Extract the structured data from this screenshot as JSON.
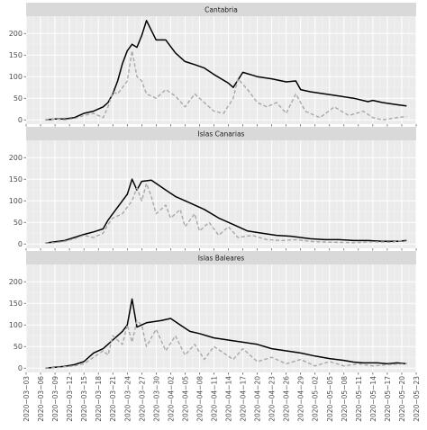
{
  "chart_data": [
    {
      "type": "line",
      "title": "Cantabria",
      "ylim": [
        -10,
        240
      ],
      "yticks": [
        0,
        50,
        100,
        150,
        200
      ],
      "xlim": [
        "2020-03-03",
        "2020-05-23"
      ],
      "grid": true,
      "series": [
        {
          "style": "solid",
          "x": [
            "2020-03-07",
            "2020-03-09",
            "2020-03-11",
            "2020-03-13",
            "2020-03-15",
            "2020-03-17",
            "2020-03-19",
            "2020-03-20",
            "2020-03-21",
            "2020-03-22",
            "2020-03-23",
            "2020-03-24",
            "2020-03-25",
            "2020-03-26",
            "2020-03-27",
            "2020-03-28",
            "2020-03-30",
            "2020-04-01",
            "2020-04-03",
            "2020-04-05",
            "2020-04-07",
            "2020-04-09",
            "2020-04-11",
            "2020-04-14",
            "2020-04-15",
            "2020-04-17",
            "2020-04-20",
            "2020-04-23",
            "2020-04-26",
            "2020-04-28",
            "2020-04-29",
            "2020-05-01",
            "2020-05-04",
            "2020-05-07",
            "2020-05-10",
            "2020-05-13",
            "2020-05-14",
            "2020-05-16",
            "2020-05-19",
            "2020-05-21"
          ],
          "y": [
            0,
            2,
            2,
            5,
            15,
            20,
            30,
            40,
            60,
            90,
            130,
            160,
            175,
            168,
            195,
            230,
            185,
            185,
            155,
            135,
            128,
            120,
            105,
            85,
            75,
            110,
            100,
            95,
            88,
            90,
            70,
            65,
            60,
            55,
            50,
            42,
            45,
            40,
            35,
            32
          ]
        },
        {
          "style": "dashed",
          "color": "#a8a8a8",
          "x": [
            "2020-03-07",
            "2020-03-09",
            "2020-03-11",
            "2020-03-13",
            "2020-03-15",
            "2020-03-17",
            "2020-03-19",
            "2020-03-20",
            "2020-03-21",
            "2020-03-22",
            "2020-03-24",
            "2020-03-25",
            "2020-03-26",
            "2020-03-27",
            "2020-03-28",
            "2020-03-30",
            "2020-04-01",
            "2020-04-03",
            "2020-04-05",
            "2020-04-07",
            "2020-04-09",
            "2020-04-11",
            "2020-04-13",
            "2020-04-15",
            "2020-04-16",
            "2020-04-18",
            "2020-04-20",
            "2020-04-22",
            "2020-04-24",
            "2020-04-26",
            "2020-04-28",
            "2020-04-30",
            "2020-05-03",
            "2020-05-06",
            "2020-05-09",
            "2020-05-12",
            "2020-05-14",
            "2020-05-16",
            "2020-05-19",
            "2020-05-21"
          ],
          "y": [
            0,
            2,
            0,
            3,
            10,
            15,
            5,
            30,
            65,
            60,
            90,
            160,
            100,
            90,
            60,
            50,
            70,
            55,
            30,
            60,
            40,
            20,
            15,
            50,
            95,
            70,
            40,
            30,
            40,
            15,
            60,
            20,
            5,
            30,
            10,
            20,
            5,
            0,
            5,
            8
          ]
        }
      ]
    },
    {
      "type": "line",
      "title": "Islas Canarias",
      "ylim": [
        -10,
        240
      ],
      "yticks": [
        0,
        50,
        100,
        150,
        200
      ],
      "xlim": [
        "2020-03-03",
        "2020-05-23"
      ],
      "grid": true,
      "series": [
        {
          "style": "solid",
          "x": [
            "2020-03-07",
            "2020-03-09",
            "2020-03-11",
            "2020-03-13",
            "2020-03-15",
            "2020-03-17",
            "2020-03-19",
            "2020-03-20",
            "2020-03-21",
            "2020-03-23",
            "2020-03-24",
            "2020-03-25",
            "2020-03-26",
            "2020-03-27",
            "2020-03-29",
            "2020-04-01",
            "2020-04-03",
            "2020-04-06",
            "2020-04-09",
            "2020-04-12",
            "2020-04-15",
            "2020-04-18",
            "2020-04-21",
            "2020-04-24",
            "2020-04-27",
            "2020-05-01",
            "2020-05-04",
            "2020-05-07",
            "2020-05-10",
            "2020-05-13",
            "2020-05-16",
            "2020-05-19",
            "2020-05-21"
          ],
          "y": [
            2,
            5,
            8,
            15,
            22,
            28,
            35,
            55,
            70,
            100,
            115,
            150,
            125,
            145,
            148,
            125,
            110,
            95,
            80,
            60,
            45,
            30,
            25,
            20,
            18,
            12,
            10,
            10,
            8,
            8,
            6,
            6,
            8
          ]
        },
        {
          "style": "dashed",
          "color": "#a8a8a8",
          "x": [
            "2020-03-07",
            "2020-03-09",
            "2020-03-11",
            "2020-03-13",
            "2020-03-15",
            "2020-03-17",
            "2020-03-19",
            "2020-03-20",
            "2020-03-21",
            "2020-03-23",
            "2020-03-25",
            "2020-03-26",
            "2020-03-27",
            "2020-03-28",
            "2020-03-29",
            "2020-03-30",
            "2020-04-01",
            "2020-04-02",
            "2020-04-04",
            "2020-04-05",
            "2020-04-07",
            "2020-04-08",
            "2020-04-10",
            "2020-04-12",
            "2020-04-14",
            "2020-04-16",
            "2020-04-19",
            "2020-04-22",
            "2020-04-25",
            "2020-04-28",
            "2020-05-02",
            "2020-05-06",
            "2020-05-10",
            "2020-05-14",
            "2020-05-18",
            "2020-05-21"
          ],
          "y": [
            2,
            3,
            6,
            12,
            20,
            15,
            25,
            45,
            60,
            70,
            100,
            130,
            100,
            140,
            110,
            70,
            90,
            60,
            80,
            40,
            70,
            30,
            50,
            20,
            40,
            15,
            20,
            10,
            8,
            10,
            5,
            4,
            3,
            5,
            4,
            10
          ]
        }
      ]
    },
    {
      "type": "line",
      "title": "Islas Baleares",
      "ylim": [
        -10,
        240
      ],
      "yticks": [
        0,
        50,
        100,
        150,
        200
      ],
      "xlim": [
        "2020-03-03",
        "2020-05-23"
      ],
      "grid": true,
      "series": [
        {
          "style": "solid",
          "x": [
            "2020-03-07",
            "2020-03-09",
            "2020-03-11",
            "2020-03-13",
            "2020-03-15",
            "2020-03-17",
            "2020-03-19",
            "2020-03-21",
            "2020-03-23",
            "2020-03-24",
            "2020-03-25",
            "2020-03-26",
            "2020-03-27",
            "2020-03-28",
            "2020-03-31",
            "2020-04-02",
            "2020-04-04",
            "2020-04-06",
            "2020-04-08",
            "2020-04-11",
            "2020-04-14",
            "2020-04-17",
            "2020-04-20",
            "2020-04-23",
            "2020-04-26",
            "2020-04-29",
            "2020-05-02",
            "2020-05-05",
            "2020-05-08",
            "2020-05-10",
            "2020-05-12",
            "2020-05-15",
            "2020-05-17",
            "2020-05-19",
            "2020-05-21"
          ],
          "y": [
            0,
            2,
            4,
            8,
            15,
            35,
            45,
            65,
            85,
            100,
            160,
            95,
            100,
            105,
            110,
            115,
            100,
            85,
            80,
            70,
            65,
            60,
            55,
            45,
            40,
            35,
            28,
            22,
            18,
            14,
            12,
            12,
            10,
            12,
            10
          ]
        },
        {
          "style": "dashed",
          "color": "#a8a8a8",
          "x": [
            "2020-03-07",
            "2020-03-09",
            "2020-03-11",
            "2020-03-13",
            "2020-03-15",
            "2020-03-17",
            "2020-03-19",
            "2020-03-20",
            "2020-03-21",
            "2020-03-23",
            "2020-03-24",
            "2020-03-25",
            "2020-03-26",
            "2020-03-27",
            "2020-03-28",
            "2020-03-30",
            "2020-04-01",
            "2020-04-03",
            "2020-04-05",
            "2020-04-07",
            "2020-04-09",
            "2020-04-11",
            "2020-04-13",
            "2020-04-15",
            "2020-04-17",
            "2020-04-20",
            "2020-04-23",
            "2020-04-26",
            "2020-04-29",
            "2020-05-02",
            "2020-05-05",
            "2020-05-08",
            "2020-05-11",
            "2020-05-14",
            "2020-05-17",
            "2020-05-21"
          ],
          "y": [
            0,
            1,
            3,
            5,
            10,
            25,
            40,
            30,
            75,
            55,
            100,
            60,
            110,
            100,
            50,
            90,
            40,
            75,
            30,
            55,
            20,
            50,
            35,
            20,
            45,
            15,
            25,
            10,
            20,
            5,
            15,
            5,
            10,
            5,
            8,
            10
          ]
        }
      ]
    }
  ],
  "x_tick_labels": [
    "2020−03−03",
    "2020−03−06",
    "2020−03−09",
    "2020−03−12",
    "2020−03−15",
    "2020−03−18",
    "2020−03−21",
    "2020−03−24",
    "2020−03−27",
    "2020−03−30",
    "2020−04−02",
    "2020−04−05",
    "2020−04−08",
    "2020−04−11",
    "2020−04−14",
    "2020−04−17",
    "2020−04−20",
    "2020−04−23",
    "2020−04−26",
    "2020−04−29",
    "2020−05−02",
    "2020−05−05",
    "2020−05−08",
    "2020−05−11",
    "2020−05−14",
    "2020−05−17",
    "2020−05−20",
    "2020−05−23"
  ],
  "colors": {
    "panel_bg": "#ebebeb",
    "strip_bg": "#d9d9d9",
    "grid_major": "#ffffff",
    "grid_minor": "#f5f5f5",
    "solid_line": "#000000",
    "dashed_line": "#a8a8a8",
    "axis_text": "#4d4d4d"
  }
}
